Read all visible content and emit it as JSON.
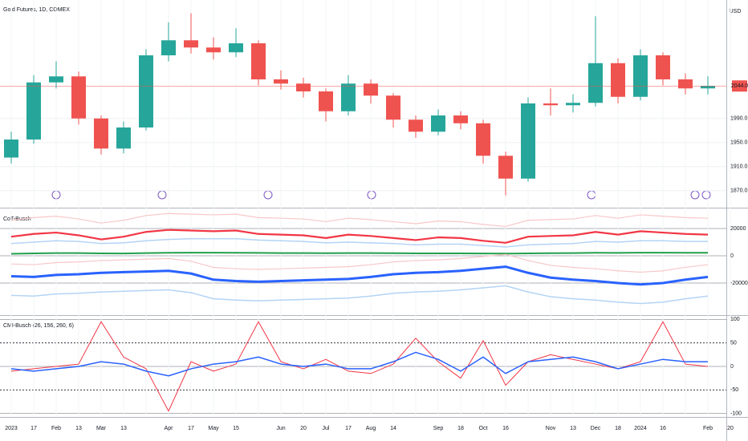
{
  "chart_data": [
    {
      "type": "candlestick",
      "title": "Gold Futures, 1D, COMEX",
      "unit": "USD",
      "categories": [
        "2023",
        "17",
        "Feb",
        "13",
        "Mar",
        "13",
        null,
        "Apr",
        "17",
        "May",
        "15",
        null,
        "Jun",
        "20",
        "Jul",
        "17",
        "Aug",
        "14",
        null,
        "Sep",
        "18",
        "Oct",
        "16",
        null,
        "Nov",
        "13",
        "Dec",
        "18",
        "2024",
        "16",
        null,
        "Feb",
        "20"
      ],
      "open": [
        1925,
        1955,
        2050,
        2060,
        1990,
        1940,
        1975,
        2095,
        2120,
        2108,
        2100,
        2115,
        2055,
        2048,
        2035,
        2002,
        2048,
        2028,
        1988,
        1968,
        1995,
        1982,
        1928,
        1890,
        2015,
        2012,
        2016,
        2082,
        2026,
        2095,
        2055,
        2040,
        null
      ],
      "high": [
        1968,
        2062,
        2085,
        2068,
        1995,
        1985,
        2105,
        2150,
        2165,
        2125,
        2140,
        2120,
        2070,
        2058,
        2040,
        2062,
        2055,
        2032,
        1995,
        2005,
        2002,
        1988,
        1935,
        2025,
        2040,
        2030,
        2160,
        2090,
        2105,
        2100,
        2065,
        2060,
        null
      ],
      "low": [
        1915,
        1948,
        2040,
        1980,
        1930,
        1932,
        1970,
        2085,
        2098,
        2088,
        2092,
        2045,
        2038,
        2025,
        1985,
        1995,
        2015,
        1975,
        1958,
        1962,
        1972,
        1915,
        1862,
        1885,
        1995,
        2000,
        2010,
        2015,
        2020,
        2045,
        2030,
        2030,
        null
      ],
      "close": [
        1955,
        2050,
        2060,
        1990,
        1940,
        1975,
        2095,
        2120,
        2108,
        2100,
        2115,
        2055,
        2048,
        2035,
        2002,
        2048,
        2028,
        1988,
        1968,
        1995,
        1982,
        1928,
        1890,
        2015,
        2012,
        2016,
        2082,
        2026,
        2095,
        2055,
        2040,
        2044,
        null
      ],
      "up_color": "#26a69a",
      "down_color": "#ef5350",
      "last_price": 2044,
      "last_price_label": "2044.0",
      "ylim": [
        1843,
        2187
      ],
      "yticks": [
        {
          "value": 1870,
          "label": "1870.0"
        },
        {
          "value": 1910,
          "label": "1910.0"
        },
        {
          "value": 1950,
          "label": "1950.0"
        },
        {
          "value": 1990,
          "label": "1990.0"
        }
      ],
      "grid": true
    },
    {
      "type": "line",
      "title": "CoT-Busch",
      "series": [
        {
          "color": "#f8c8c8",
          "values": [
            26000,
            28000,
            29000,
            27000,
            24000,
            26000,
            29500,
            31000,
            30500,
            30000,
            30500,
            28000,
            27500,
            27000,
            25000,
            27500,
            26500,
            25000,
            23500,
            25500,
            25000,
            23000,
            21500,
            26000,
            26500,
            27000,
            29500,
            27500,
            30000,
            29000,
            28000,
            27500,
            null
          ]
        },
        {
          "color": "#f23645",
          "values": [
            14000,
            16000,
            17000,
            15000,
            12000,
            14000,
            17500,
            19000,
            18500,
            18000,
            18500,
            16000,
            15500,
            15000,
            13000,
            15500,
            14500,
            13000,
            11500,
            13500,
            13000,
            11000,
            9500,
            14000,
            14500,
            15000,
            17500,
            15500,
            18000,
            17000,
            16000,
            15500,
            null
          ]
        },
        {
          "color": "#b3d4f5",
          "values": [
            9000,
            10000,
            11000,
            10500,
            9000,
            9500,
            11000,
            12000,
            12500,
            12500,
            12500,
            11500,
            11000,
            10500,
            9500,
            10000,
            9500,
            9000,
            8000,
            8500,
            8500,
            7500,
            6500,
            8000,
            8500,
            9000,
            10500,
            10000,
            11000,
            11000,
            10500,
            10500,
            null
          ]
        },
        {
          "color": "#22a04b",
          "values": [
            1500,
            1800,
            2000,
            2000,
            1800,
            1700,
            2000,
            2200,
            2300,
            2300,
            2200,
            2100,
            2000,
            2000,
            1900,
            2000,
            2000,
            1900,
            1800,
            1800,
            1800,
            1700,
            1600,
            1800,
            1900,
            2000,
            2200,
            2100,
            2300,
            2300,
            2200,
            2200,
            null
          ]
        },
        {
          "color": "#f8c8c8",
          "values": [
            -6000,
            -6500,
            -5000,
            -4500,
            -3500,
            -3000,
            -2500,
            -2000,
            -4000,
            -8500,
            -9500,
            -10000,
            -9500,
            -9000,
            -8500,
            -8000,
            -6500,
            -4500,
            -3500,
            -3000,
            -2000,
            -500,
            1000,
            -3500,
            -7000,
            -8500,
            -9500,
            -11000,
            -12000,
            -11000,
            -8500,
            -6500,
            null
          ]
        },
        {
          "color": "#2962ff",
          "values": [
            -15000,
            -15500,
            -14000,
            -13500,
            -12500,
            -12000,
            -11500,
            -11000,
            -13000,
            -17500,
            -18500,
            -19000,
            -18500,
            -18000,
            -17500,
            -17000,
            -15500,
            -13500,
            -12500,
            -12000,
            -11000,
            -9500,
            -8000,
            -12500,
            -16000,
            -17500,
            -18500,
            -20000,
            -21000,
            -20000,
            -17500,
            -15500,
            null
          ]
        },
        {
          "color": "#b3d4f5",
          "values": [
            -29000,
            -29500,
            -28000,
            -27500,
            -26500,
            -26000,
            -25500,
            -25000,
            -27000,
            -31500,
            -32500,
            -33000,
            -32500,
            -32000,
            -31500,
            -31000,
            -29500,
            -27500,
            -26500,
            -26000,
            -25000,
            -23500,
            -22000,
            -26500,
            -30000,
            -31500,
            -32500,
            -34000,
            -35000,
            -34000,
            -31500,
            -29500,
            null
          ]
        }
      ],
      "ylim": [
        -42900,
        33500
      ],
      "yticks": [
        -20000,
        0,
        20000
      ]
    },
    {
      "type": "line",
      "title": "CMI-Busch (26, 156, 260, 6)",
      "series": [
        {
          "color": "#f23645",
          "values": [
            -10,
            -5,
            0,
            5,
            95,
            20,
            -5,
            -95,
            10,
            -10,
            5,
            95,
            10,
            -5,
            15,
            -10,
            -15,
            5,
            60,
            10,
            -25,
            55,
            -40,
            10,
            25,
            15,
            5,
            -5,
            10,
            95,
            5,
            0,
            null
          ]
        },
        {
          "color": "#2962ff",
          "values": [
            -5,
            -10,
            -5,
            0,
            10,
            5,
            -10,
            -20,
            -5,
            5,
            10,
            20,
            5,
            0,
            5,
            -5,
            -5,
            10,
            30,
            15,
            -10,
            20,
            -15,
            10,
            15,
            20,
            10,
            -5,
            5,
            15,
            10,
            10,
            null
          ]
        }
      ],
      "ylim": [
        -104,
        104
      ],
      "yticks": [
        -100,
        -50,
        0,
        50,
        100
      ]
    }
  ]
}
